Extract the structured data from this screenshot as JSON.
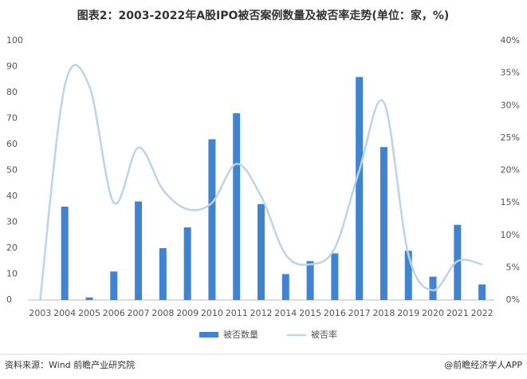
{
  "chart_data": {
    "type": "bar_line",
    "title": "图表2：2003-2022年A股IPO被否案例数量及被否率走势(单位：家，%)",
    "categories": [
      "2003",
      "2004",
      "2005",
      "2006",
      "2007",
      "2008",
      "2009",
      "2010",
      "2011",
      "2012",
      "2014",
      "2015",
      "2016",
      "2017",
      "2018",
      "2019",
      "2020",
      "2021",
      "2022"
    ],
    "series": [
      {
        "name": "被否数量",
        "color": "#4083d3",
        "type": "bar",
        "values": [
          0,
          36,
          1,
          11,
          38,
          20,
          28,
          62,
          72,
          37,
          10,
          15,
          18,
          86,
          59,
          19,
          9,
          29,
          6
        ]
      },
      {
        "name": "被否率",
        "color": "#bdd3ea",
        "type": "line",
        "axis": "y2",
        "values": [
          0,
          33,
          33,
          15,
          23.5,
          17,
          14,
          15,
          21,
          16,
          7,
          5.5,
          8,
          20,
          30.5,
          7,
          1.5,
          6,
          5.5
        ]
      }
    ],
    "ylim": [
      0,
      100
    ],
    "yticks": [
      0,
      10,
      20,
      30,
      40,
      50,
      60,
      70,
      80,
      90,
      100
    ],
    "y2lim": [
      0,
      40
    ],
    "y2ticks": [
      {
        "value": 0,
        "label": "0%"
      },
      {
        "value": 5,
        "label": "5%"
      },
      {
        "value": 10,
        "label": "10%"
      },
      {
        "value": 15,
        "label": "15%"
      },
      {
        "value": 20,
        "label": "20%"
      },
      {
        "value": 25,
        "label": "25%"
      },
      {
        "value": 30,
        "label": "30%"
      },
      {
        "value": 35,
        "label": "35%"
      },
      {
        "value": 40,
        "label": "40%"
      }
    ],
    "legend": "bottom",
    "source": "资料来源：Wind 前瞻产业研究院",
    "credit": "@前瞻经济学人APP"
  }
}
